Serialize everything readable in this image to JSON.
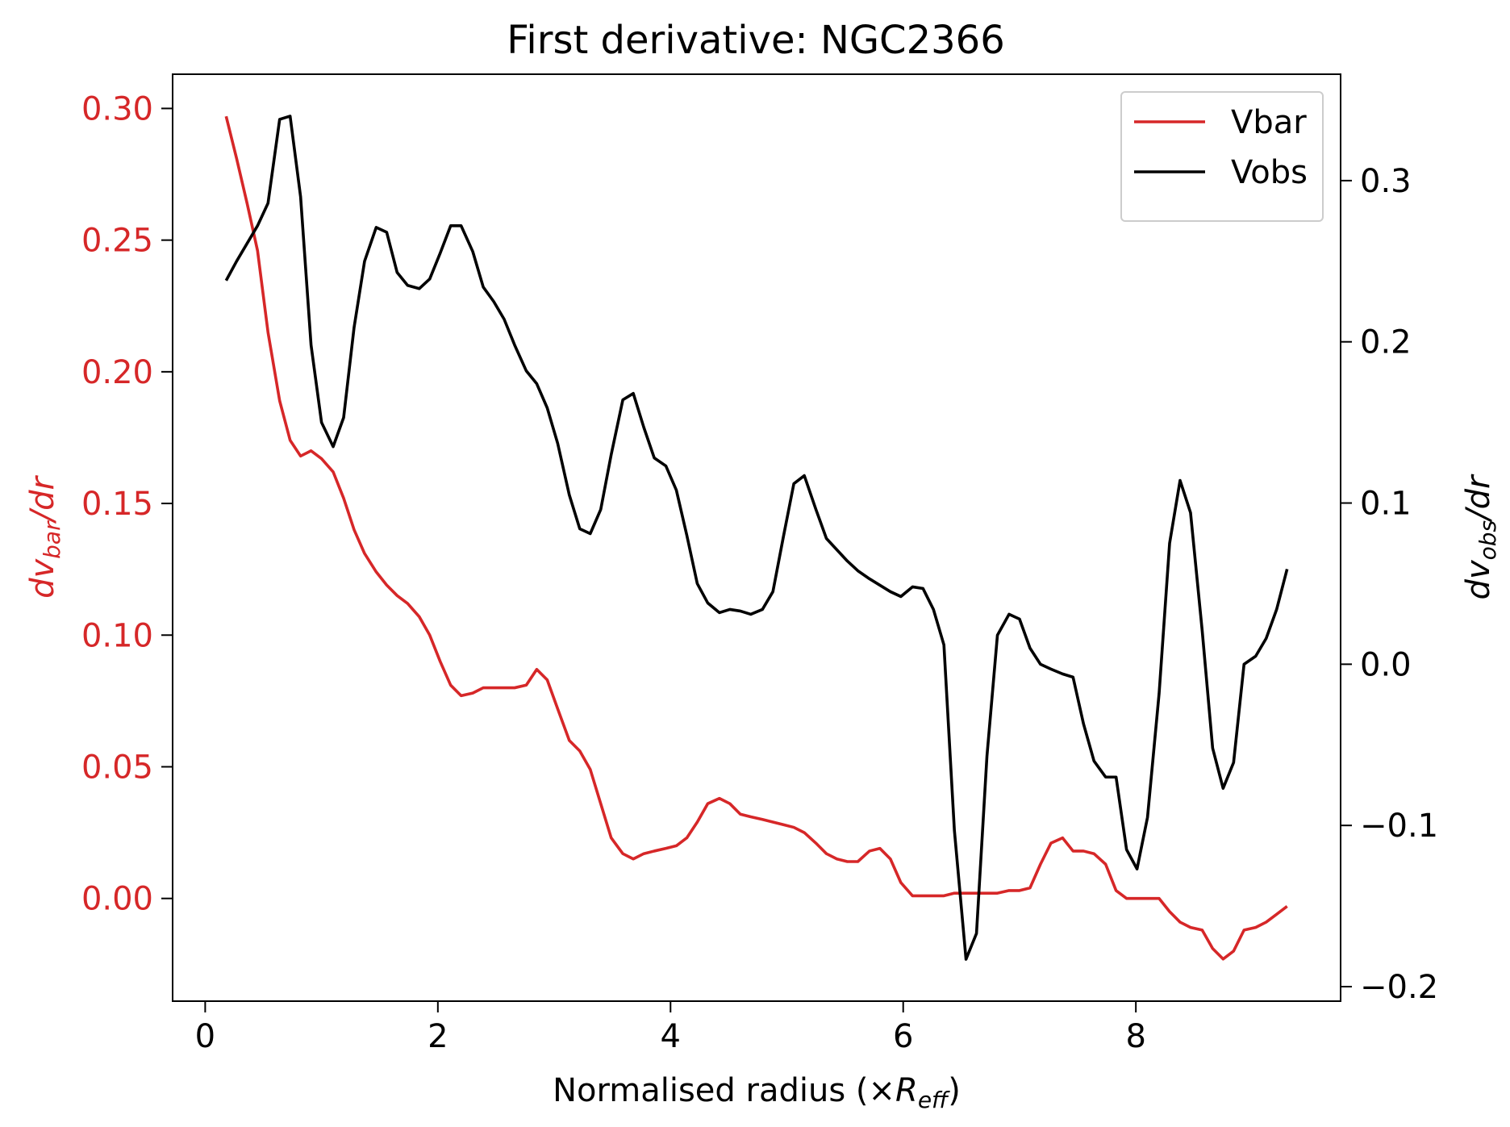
{
  "chart_data": {
    "type": "line",
    "title": "First derivative: NGC2366",
    "xlabel": [
      "Normalised radius (×",
      "R",
      "eff",
      ")"
    ],
    "ylabel": [
      "dv",
      "bar",
      "/dr"
    ],
    "y2label": [
      "dv",
      "obs",
      "/dr"
    ],
    "ycolor": "#d62728",
    "legend": "upper right",
    "x": [
      0.18,
      0.27,
      0.36,
      0.45,
      0.54,
      0.64,
      0.73,
      0.82,
      0.91,
      1.0,
      1.1,
      1.19,
      1.28,
      1.37,
      1.47,
      1.56,
      1.65,
      1.74,
      1.84,
      1.93,
      2.02,
      2.11,
      2.2,
      2.3,
      2.39,
      2.48,
      2.57,
      2.66,
      2.76,
      2.85,
      2.94,
      3.03,
      3.13,
      3.22,
      3.31,
      3.4,
      3.49,
      3.59,
      3.68,
      3.77,
      3.86,
      3.96,
      4.05,
      4.14,
      4.23,
      4.32,
      4.42,
      4.51,
      4.6,
      4.69,
      4.79,
      4.88,
      4.97,
      5.06,
      5.15,
      5.25,
      5.34,
      5.43,
      5.52,
      5.61,
      5.71,
      5.8,
      5.89,
      5.98,
      6.08,
      6.17,
      6.26,
      6.35,
      6.44,
      6.54,
      6.63,
      6.72,
      6.81,
      6.91,
      7.0,
      7.09,
      7.18,
      7.27,
      7.37,
      7.46,
      7.55,
      7.64,
      7.74,
      7.83,
      7.92,
      8.01,
      8.1,
      8.2,
      8.29,
      8.38,
      8.47,
      8.57,
      8.66,
      8.75,
      8.84,
      8.93,
      9.03,
      9.12,
      9.21,
      9.3
    ],
    "series": [
      {
        "name": "Vbar",
        "color": "#d62728",
        "axis": "y",
        "values": [
          0.297,
          0.281,
          0.264,
          0.246,
          0.215,
          0.189,
          0.174,
          0.168,
          0.17,
          0.167,
          0.162,
          0.152,
          0.14,
          0.131,
          0.124,
          0.119,
          0.115,
          0.112,
          0.107,
          0.1,
          0.09,
          0.081,
          0.077,
          0.078,
          0.08,
          0.08,
          0.08,
          0.08,
          0.081,
          0.087,
          0.083,
          0.072,
          0.06,
          0.056,
          0.049,
          0.036,
          0.023,
          0.017,
          0.015,
          0.017,
          0.018,
          0.019,
          0.02,
          0.023,
          0.029,
          0.036,
          0.038,
          0.036,
          0.032,
          0.031,
          0.03,
          0.029,
          0.028,
          0.027,
          0.025,
          0.021,
          0.017,
          0.015,
          0.014,
          0.014,
          0.018,
          0.019,
          0.015,
          0.006,
          0.001,
          0.001,
          0.001,
          0.001,
          0.002,
          0.002,
          0.002,
          0.002,
          0.002,
          0.003,
          0.003,
          0.004,
          0.013,
          0.021,
          0.023,
          0.018,
          0.018,
          0.017,
          0.013,
          0.003,
          0.0,
          0.0,
          0.0,
          0.0,
          -0.005,
          -0.009,
          -0.011,
          -0.012,
          -0.019,
          -0.023,
          -0.02,
          -0.012,
          -0.011,
          -0.009,
          -0.006,
          -0.003
        ]
      },
      {
        "name": "Vobs",
        "color": "#000000",
        "axis": "y2",
        "values": [
          0.238,
          0.25,
          0.261,
          0.272,
          0.286,
          0.338,
          0.34,
          0.29,
          0.198,
          0.15,
          0.135,
          0.153,
          0.209,
          0.25,
          0.271,
          0.268,
          0.243,
          0.235,
          0.233,
          0.239,
          0.255,
          0.272,
          0.272,
          0.256,
          0.234,
          0.225,
          0.214,
          0.198,
          0.182,
          0.174,
          0.159,
          0.137,
          0.105,
          0.084,
          0.081,
          0.096,
          0.13,
          0.164,
          0.168,
          0.147,
          0.128,
          0.123,
          0.108,
          0.08,
          0.05,
          0.038,
          0.032,
          0.034,
          0.033,
          0.031,
          0.034,
          0.045,
          0.079,
          0.112,
          0.117,
          0.096,
          0.078,
          0.071,
          0.064,
          0.058,
          0.053,
          0.049,
          0.045,
          0.042,
          0.048,
          0.047,
          0.034,
          0.012,
          -0.103,
          -0.183,
          -0.167,
          -0.057,
          0.018,
          0.031,
          0.028,
          0.01,
          0.0,
          -0.003,
          -0.006,
          -0.008,
          -0.037,
          -0.06,
          -0.07,
          -0.07,
          -0.115,
          -0.127,
          -0.095,
          -0.018,
          0.075,
          0.114,
          0.094,
          0.021,
          -0.052,
          -0.077,
          -0.061,
          0.0,
          0.005,
          0.016,
          0.034,
          0.059
        ]
      }
    ],
    "xlim": [
      -0.28,
      9.76
    ],
    "xticks": [
      0,
      2,
      4,
      6,
      8
    ],
    "ylim": [
      -0.039,
      0.313
    ],
    "yticks": [
      {
        "value": 0,
        "label": "0.00"
      },
      {
        "value": 0.05,
        "label": "0.05"
      },
      {
        "value": 0.1,
        "label": "0.10"
      },
      {
        "value": 0.15,
        "label": "0.15"
      },
      {
        "value": 0.2,
        "label": "0.20"
      },
      {
        "value": 0.25,
        "label": "0.25"
      },
      {
        "value": 0.3,
        "label": "0.30"
      }
    ],
    "y2lim": [
      -0.209,
      0.366
    ],
    "y2ticks": [
      {
        "value": -0.2,
        "label": "−0.2"
      },
      {
        "value": -0.1,
        "label": "−0.1"
      },
      {
        "value": 0,
        "label": "0.0"
      },
      0.1,
      0.2,
      0.3
    ]
  }
}
